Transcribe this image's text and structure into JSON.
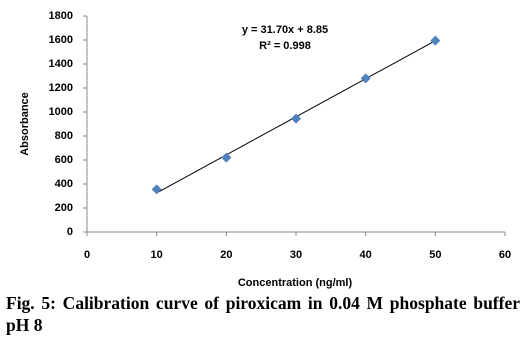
{
  "chart_data": {
    "type": "scatter",
    "x_label": "Concentration (ng/ml)",
    "y_label": "Absorbance",
    "x": [
      10,
      20,
      30,
      40,
      50
    ],
    "values": [
      355,
      620,
      945,
      1280,
      1595
    ],
    "color": "#4f81bd",
    "trendline": {
      "x": [
        10,
        50
      ],
      "values": [
        326,
        1594
      ],
      "color": "#000000"
    },
    "annotations": [
      "y = 31.70x + 8.85",
      "R² = 0.998"
    ],
    "xlim": [
      0,
      60
    ],
    "xticks": [
      0,
      10,
      20,
      30,
      40,
      50,
      60
    ],
    "ylim": [
      0,
      1800
    ],
    "yticks": [
      0,
      200,
      400,
      600,
      800,
      1000,
      1200,
      1400,
      1600,
      1800
    ],
    "grid": false
  },
  "caption": "Fig. 5: Calibration curve of piroxicam in 0.04 M phosphate buffer pH 8"
}
